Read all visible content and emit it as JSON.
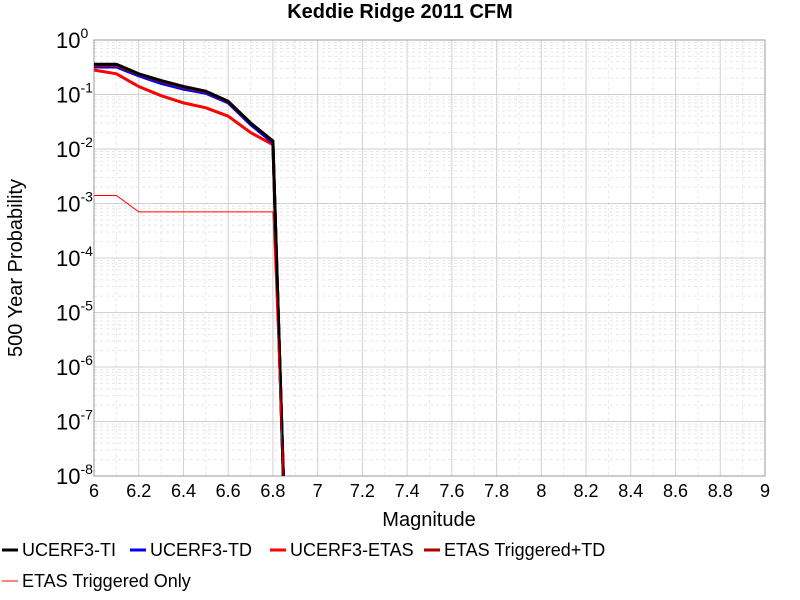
{
  "chart_data": {
    "type": "line",
    "title": "Keddie Ridge 2011 CFM",
    "xlabel": "Magnitude",
    "ylabel": "500 Year Probability",
    "xlim": [
      6,
      9
    ],
    "ylim": [
      1e-08,
      1
    ],
    "y_scale": "log",
    "grid": true,
    "legend_position": "bottom",
    "x_ticks": [
      "6",
      "6.2",
      "6.4",
      "6.6",
      "6.8",
      "7",
      "7.2",
      "7.4",
      "7.6",
      "7.8",
      "8",
      "8.2",
      "8.4",
      "8.6",
      "8.8",
      "9"
    ],
    "y_ticks": [
      {
        "base": "10",
        "exp": "0",
        "value": 1
      },
      {
        "base": "10",
        "exp": "-1",
        "value": 0.1
      },
      {
        "base": "10",
        "exp": "-2",
        "value": 0.01
      },
      {
        "base": "10",
        "exp": "-3",
        "value": 0.001
      },
      {
        "base": "10",
        "exp": "-4",
        "value": 0.0001
      },
      {
        "base": "10",
        "exp": "-5",
        "value": 1e-05
      },
      {
        "base": "10",
        "exp": "-6",
        "value": 1e-06
      },
      {
        "base": "10",
        "exp": "-7",
        "value": 1e-07
      },
      {
        "base": "10",
        "exp": "-8",
        "value": 1e-08
      }
    ],
    "series": [
      {
        "name": "UCERF3-TI",
        "color": "#000000",
        "width": 3,
        "points": [
          [
            6.0,
            0.36
          ],
          [
            6.1,
            0.36
          ],
          [
            6.2,
            0.24
          ],
          [
            6.3,
            0.18
          ],
          [
            6.4,
            0.14
          ],
          [
            6.5,
            0.115
          ],
          [
            6.6,
            0.075
          ],
          [
            6.7,
            0.03
          ],
          [
            6.8,
            0.014
          ],
          [
            6.85,
            3.5e-09
          ]
        ]
      },
      {
        "name": "UCERF3-TD",
        "color": "#0000ff",
        "width": 3,
        "points": [
          [
            6.0,
            0.32
          ],
          [
            6.1,
            0.32
          ],
          [
            6.2,
            0.22
          ],
          [
            6.3,
            0.16
          ],
          [
            6.4,
            0.125
          ],
          [
            6.5,
            0.105
          ],
          [
            6.6,
            0.07
          ],
          [
            6.7,
            0.028
          ],
          [
            6.8,
            0.013
          ],
          [
            6.85,
            3.5e-09
          ]
        ]
      },
      {
        "name": "UCERF3-ETAS",
        "color": "#ff0000",
        "width": 3,
        "points": [
          [
            6.0,
            0.28
          ],
          [
            6.1,
            0.24
          ],
          [
            6.2,
            0.14
          ],
          [
            6.3,
            0.095
          ],
          [
            6.4,
            0.07
          ],
          [
            6.5,
            0.057
          ],
          [
            6.6,
            0.04
          ],
          [
            6.7,
            0.02
          ],
          [
            6.8,
            0.012
          ],
          [
            6.85,
            3.5e-09
          ]
        ]
      },
      {
        "name": "ETAS Triggered+TD",
        "color": "#aa0000",
        "width": 3,
        "points": [
          [
            6.0,
            0.34
          ],
          [
            6.1,
            0.34
          ],
          [
            6.2,
            0.235
          ],
          [
            6.3,
            0.175
          ],
          [
            6.4,
            0.135
          ],
          [
            6.5,
            0.112
          ],
          [
            6.6,
            0.073
          ],
          [
            6.7,
            0.03
          ],
          [
            6.8,
            0.014
          ],
          [
            6.85,
            3.5e-09
          ]
        ]
      },
      {
        "name": "ETAS Triggered Only",
        "color": "#ff0000",
        "width": 1,
        "points": [
          [
            6.0,
            0.0014
          ],
          [
            6.1,
            0.0014
          ],
          [
            6.2,
            0.0007
          ],
          [
            6.3,
            0.0007
          ],
          [
            6.4,
            0.0007
          ],
          [
            6.5,
            0.0007
          ],
          [
            6.6,
            0.0007
          ],
          [
            6.7,
            0.0007
          ],
          [
            6.8,
            0.0007
          ],
          [
            6.85,
            3.5e-09
          ]
        ]
      }
    ]
  }
}
